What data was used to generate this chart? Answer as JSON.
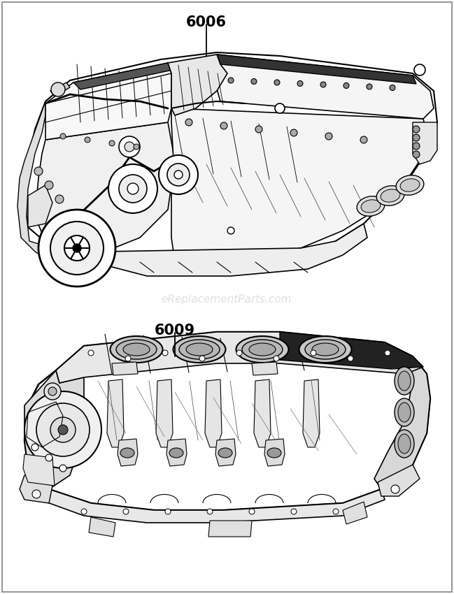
{
  "background_color": "#ffffff",
  "label_6006": "6006",
  "label_6009": "6009",
  "watermark": "eReplacementParts.com",
  "watermark_alpha": 0.25,
  "watermark_fontsize": 11,
  "label_fontsize": 15,
  "label_fontweight": "bold",
  "fig_width": 6.49,
  "fig_height": 8.5,
  "dpi": 100,
  "border_color": "#888888",
  "line_color": "#000000"
}
